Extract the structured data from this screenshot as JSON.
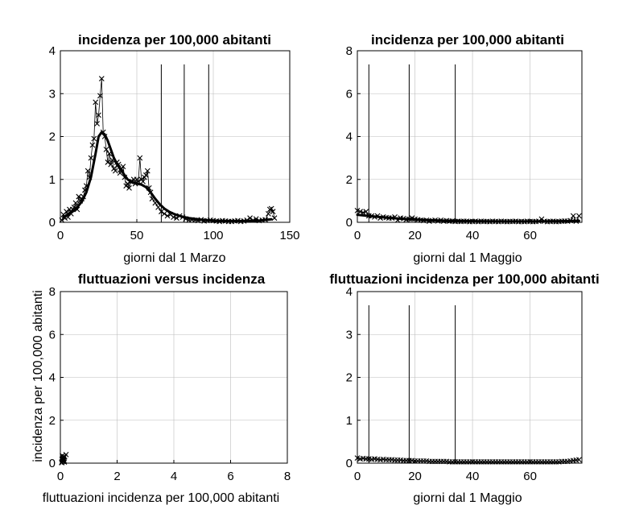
{
  "chart_data": [
    {
      "id": "p1",
      "type": "line",
      "title": "incidenza per 100,000 abitanti",
      "xlabel": "giorni dal 1 Marzo",
      "ylabel": "",
      "xlim": [
        0,
        150
      ],
      "ylim": [
        0,
        4
      ],
      "xticks": [
        0,
        50,
        100,
        150
      ],
      "yticks": [
        0,
        1,
        2,
        3,
        4
      ],
      "grid": true,
      "vlines": [
        66,
        81,
        97
      ],
      "series": [
        {
          "style": "markers-x-thin-line",
          "x": [
            1,
            2,
            3,
            4,
            5,
            6,
            7,
            8,
            9,
            10,
            11,
            12,
            13,
            14,
            15,
            16,
            17,
            18,
            19,
            20,
            21,
            22,
            23,
            24,
            25,
            26,
            27,
            28,
            29,
            30,
            31,
            32,
            33,
            34,
            35,
            36,
            37,
            38,
            39,
            40,
            41,
            42,
            43,
            44,
            45,
            46,
            47,
            48,
            49,
            50,
            51,
            52,
            53,
            54,
            55,
            56,
            57,
            58,
            59,
            60,
            62,
            64,
            66,
            68,
            70,
            72,
            74,
            76,
            78,
            80,
            82,
            84,
            86,
            88,
            90,
            92,
            94,
            96,
            98,
            100,
            102,
            104,
            106,
            108,
            110,
            112,
            114,
            116,
            118,
            120,
            122,
            124,
            126,
            128,
            130,
            132,
            134,
            136,
            137,
            138,
            139,
            140
          ],
          "y": [
            0.05,
            0.18,
            0.1,
            0.25,
            0.12,
            0.3,
            0.2,
            0.3,
            0.35,
            0.45,
            0.3,
            0.6,
            0.5,
            0.55,
            0.6,
            0.75,
            0.85,
            1.2,
            1.05,
            1.5,
            1.8,
            1.95,
            2.8,
            2.3,
            2.5,
            2.95,
            3.35,
            2.1,
            2.0,
            1.7,
            1.4,
            1.6,
            1.35,
            1.45,
            1.25,
            1.2,
            1.4,
            1.35,
            1.15,
            1.25,
            1.3,
            1.05,
            0.85,
            0.9,
            0.8,
            0.95,
            0.95,
            1.0,
            0.9,
            1.0,
            0.95,
            1.5,
            1.0,
            0.95,
            1.05,
            1.1,
            1.2,
            0.8,
            0.7,
            0.55,
            0.45,
            0.35,
            0.25,
            0.2,
            0.15,
            0.18,
            0.12,
            0.1,
            0.15,
            0.12,
            0.08,
            0.05,
            0.06,
            0.05,
            0.04,
            0.06,
            0.03,
            0.04,
            0.05,
            0.04,
            0.03,
            0.02,
            0.04,
            0.03,
            0.02,
            0.02,
            0.03,
            0.04,
            0.02,
            0.03,
            0.05,
            0.1,
            0.05,
            0.08,
            0.04,
            0.05,
            0.06,
            0.2,
            0.3,
            0.32,
            0.25,
            0.1
          ]
        },
        {
          "style": "thick-line",
          "x": [
            2,
            5,
            8,
            11,
            14,
            17,
            20,
            23,
            25,
            27,
            29,
            31,
            33,
            35,
            38,
            41,
            44,
            47,
            50,
            53,
            56,
            59,
            62,
            65,
            68,
            71,
            74,
            77,
            80,
            84,
            88,
            92,
            96,
            100,
            110,
            120,
            130,
            138
          ],
          "y": [
            0.12,
            0.18,
            0.25,
            0.35,
            0.48,
            0.7,
            1.05,
            1.6,
            2.0,
            2.1,
            2.05,
            1.9,
            1.7,
            1.5,
            1.3,
            1.15,
            1.0,
            0.93,
            0.9,
            0.88,
            0.82,
            0.7,
            0.55,
            0.42,
            0.32,
            0.25,
            0.2,
            0.16,
            0.13,
            0.1,
            0.08,
            0.06,
            0.05,
            0.04,
            0.03,
            0.03,
            0.04,
            0.07
          ]
        }
      ]
    },
    {
      "id": "p2",
      "type": "line",
      "title": "incidenza per 100,000 abitanti",
      "xlabel": "giorni dal 1 Maggio",
      "ylabel": "",
      "xlim": [
        0,
        78
      ],
      "ylim": [
        0,
        8
      ],
      "xticks": [
        0,
        20,
        40,
        60
      ],
      "yticks": [
        0,
        2,
        4,
        6,
        8
      ],
      "grid": true,
      "vlines": [
        4,
        18,
        34
      ],
      "series": [
        {
          "style": "markers-x-thin-line",
          "x": [
            0,
            1,
            2,
            3,
            4,
            5,
            6,
            7,
            8,
            9,
            10,
            11,
            12,
            13,
            14,
            15,
            16,
            17,
            18,
            19,
            20,
            21,
            22,
            23,
            24,
            25,
            26,
            27,
            28,
            29,
            30,
            31,
            32,
            33,
            34,
            35,
            36,
            37,
            38,
            39,
            40,
            41,
            42,
            43,
            44,
            45,
            46,
            47,
            48,
            49,
            50,
            51,
            52,
            53,
            54,
            55,
            56,
            57,
            58,
            59,
            60,
            61,
            62,
            63,
            64,
            65,
            66,
            67,
            68,
            69,
            70,
            71,
            72,
            73,
            74,
            75,
            76,
            77
          ],
          "y": [
            0.55,
            0.5,
            0.45,
            0.5,
            0.3,
            0.3,
            0.25,
            0.3,
            0.2,
            0.25,
            0.22,
            0.2,
            0.2,
            0.25,
            0.1,
            0.2,
            0.18,
            0.12,
            0.15,
            0.2,
            0.15,
            0.12,
            0.1,
            0.08,
            0.1,
            0.05,
            0.08,
            0.1,
            0.06,
            0.1,
            0.05,
            0.08,
            0.05,
            0.06,
            0.04,
            0.05,
            0.04,
            0.05,
            0.05,
            0.03,
            0.04,
            0.05,
            0.03,
            0.05,
            0.04,
            0.04,
            0.03,
            0.05,
            0.04,
            0.03,
            0.05,
            0.04,
            0.03,
            0.04,
            0.04,
            0.05,
            0.03,
            0.04,
            0.03,
            0.05,
            0.04,
            0.03,
            0.04,
            0.05,
            0.15,
            0.05,
            0.03,
            0.04,
            0.05,
            0.03,
            0.04,
            0.05,
            0.06,
            0.05,
            0.08,
            0.3,
            0.05,
            0.3
          ]
        },
        {
          "style": "thick-line",
          "x": [
            0,
            5,
            10,
            15,
            20,
            25,
            30,
            40,
            50,
            60,
            70,
            77
          ],
          "y": [
            0.35,
            0.28,
            0.22,
            0.17,
            0.13,
            0.1,
            0.08,
            0.05,
            0.04,
            0.04,
            0.05,
            0.07
          ]
        }
      ]
    },
    {
      "id": "p3",
      "type": "scatter",
      "title": "fluttuazioni versus incidenza",
      "xlabel": "fluttuazioni incidenza per 100,000 abitanti",
      "ylabel": "incidenza per 100,000 abitanti",
      "xlim": [
        0,
        8
      ],
      "ylim": [
        0,
        8
      ],
      "xticks": [
        0,
        2,
        4,
        6,
        8
      ],
      "yticks": [
        0,
        2,
        4,
        6,
        8
      ],
      "grid": true,
      "vlines": [],
      "series": [
        {
          "style": "markers-x",
          "x": [
            0.05,
            0.08,
            0.1,
            0.12,
            0.15,
            0.07,
            0.1,
            0.13,
            0.2,
            0.05,
            0.09,
            0.11,
            0.06,
            0.14,
            0.08
          ],
          "y": [
            0.05,
            0.1,
            0.15,
            0.2,
            0.3,
            0.35,
            0.25,
            0.12,
            0.4,
            0.02,
            0.08,
            0.3,
            0.18,
            0.05,
            0.22
          ]
        }
      ]
    },
    {
      "id": "p4",
      "type": "line",
      "title": "fluttuazioni incidenza per 100,000 abitanti",
      "xlabel": "giorni dal 1 Maggio",
      "ylabel": "",
      "xlim": [
        0,
        78
      ],
      "ylim": [
        0,
        4
      ],
      "xticks": [
        0,
        20,
        40,
        60
      ],
      "yticks": [
        0,
        1,
        2,
        3,
        4
      ],
      "grid": true,
      "vlines": [
        4,
        18,
        34
      ],
      "series": [
        {
          "style": "markers-x-thin-line",
          "x": [
            0,
            1,
            2,
            3,
            4,
            5,
            6,
            7,
            8,
            9,
            10,
            11,
            12,
            13,
            14,
            15,
            16,
            17,
            18,
            19,
            20,
            21,
            22,
            23,
            24,
            25,
            26,
            27,
            28,
            29,
            30,
            31,
            32,
            33,
            34,
            35,
            36,
            37,
            38,
            39,
            40,
            41,
            42,
            43,
            44,
            45,
            46,
            47,
            48,
            49,
            50,
            51,
            52,
            53,
            54,
            55,
            56,
            57,
            58,
            59,
            60,
            61,
            62,
            63,
            64,
            65,
            66,
            67,
            68,
            69,
            70,
            71,
            72,
            73,
            74,
            75,
            76,
            77
          ],
          "y": [
            0.12,
            0.1,
            0.11,
            0.1,
            0.1,
            0.09,
            0.1,
            0.09,
            0.08,
            0.09,
            0.08,
            0.08,
            0.08,
            0.07,
            0.07,
            0.07,
            0.06,
            0.06,
            0.06,
            0.06,
            0.05,
            0.05,
            0.05,
            0.05,
            0.05,
            0.04,
            0.04,
            0.04,
            0.04,
            0.04,
            0.04,
            0.04,
            0.03,
            0.03,
            0.03,
            0.03,
            0.03,
            0.03,
            0.03,
            0.03,
            0.03,
            0.03,
            0.03,
            0.03,
            0.03,
            0.03,
            0.03,
            0.03,
            0.03,
            0.03,
            0.03,
            0.03,
            0.03,
            0.03,
            0.03,
            0.03,
            0.03,
            0.03,
            0.03,
            0.03,
            0.03,
            0.03,
            0.03,
            0.03,
            0.03,
            0.03,
            0.03,
            0.03,
            0.03,
            0.03,
            0.03,
            0.04,
            0.04,
            0.04,
            0.05,
            0.06,
            0.07,
            0.08
          ]
        }
      ]
    }
  ]
}
